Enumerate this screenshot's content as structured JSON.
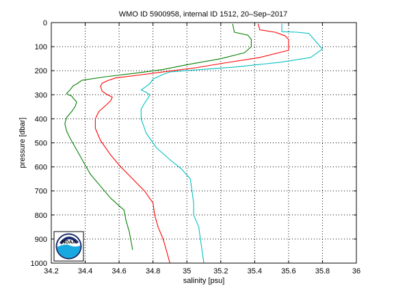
{
  "chart_data": {
    "type": "line",
    "title": "WMO ID 5900958, internal ID 1512, 20–Sep–2017",
    "xlabel": "salinity [psu]",
    "ylabel": "pressure [dbar]",
    "xlim": [
      34.2,
      36
    ],
    "ylim": [
      0,
      1000
    ],
    "y_reversed": true,
    "grid": true,
    "x_ticks": [
      34.2,
      34.4,
      34.6,
      34.8,
      35,
      35.2,
      35.4,
      35.6,
      35.8,
      36
    ],
    "x_tick_labels": [
      "34.2",
      "34.4",
      "34.6",
      "34.8",
      "35",
      "35.2",
      "35.4",
      "35.6",
      "35.8",
      "36"
    ],
    "y_ticks": [
      0,
      100,
      200,
      300,
      400,
      500,
      600,
      700,
      800,
      900,
      1000
    ],
    "y_tick_labels": [
      "0",
      "100",
      "200",
      "300",
      "400",
      "500",
      "600",
      "700",
      "800",
      "900",
      "1000"
    ],
    "logo": "noaa-logo",
    "series": [
      {
        "color": "#007f00",
        "points": [
          [
            35.27,
            5
          ],
          [
            35.28,
            40
          ],
          [
            35.36,
            52
          ],
          [
            35.38,
            70
          ],
          [
            35.38,
            100
          ],
          [
            35.34,
            125
          ],
          [
            35.2,
            150
          ],
          [
            35.0,
            175
          ],
          [
            34.86,
            195
          ],
          [
            34.7,
            210
          ],
          [
            34.52,
            225
          ],
          [
            34.38,
            240
          ],
          [
            34.35,
            255
          ],
          [
            34.33,
            262
          ],
          [
            34.31,
            280
          ],
          [
            34.29,
            295
          ],
          [
            34.3,
            300
          ],
          [
            34.32,
            305
          ],
          [
            34.33,
            315
          ],
          [
            34.35,
            330
          ],
          [
            34.34,
            350
          ],
          [
            34.32,
            370
          ],
          [
            34.29,
            395
          ],
          [
            34.28,
            420
          ],
          [
            34.29,
            450
          ],
          [
            34.31,
            480
          ],
          [
            34.35,
            530
          ],
          [
            34.39,
            580
          ],
          [
            34.43,
            630
          ],
          [
            34.49,
            680
          ],
          [
            34.55,
            730
          ],
          [
            34.63,
            780
          ],
          [
            34.64,
            820
          ],
          [
            34.66,
            870
          ],
          [
            34.68,
            945
          ]
        ]
      },
      {
        "color": "#ff0000",
        "points": [
          [
            35.42,
            5
          ],
          [
            35.43,
            30
          ],
          [
            35.52,
            40
          ],
          [
            35.58,
            55
          ],
          [
            35.6,
            70
          ],
          [
            35.6,
            115
          ],
          [
            35.43,
            145
          ],
          [
            35.22,
            168
          ],
          [
            35.05,
            188
          ],
          [
            34.88,
            203
          ],
          [
            34.72,
            218
          ],
          [
            34.58,
            230
          ],
          [
            34.53,
            242
          ],
          [
            34.5,
            252
          ],
          [
            34.49,
            265
          ],
          [
            34.5,
            285
          ],
          [
            34.53,
            300
          ],
          [
            34.56,
            310
          ],
          [
            34.55,
            325
          ],
          [
            34.52,
            345
          ],
          [
            34.48,
            370
          ],
          [
            34.46,
            400
          ],
          [
            34.46,
            440
          ],
          [
            34.49,
            490
          ],
          [
            34.55,
            550
          ],
          [
            34.61,
            600
          ],
          [
            34.68,
            650
          ],
          [
            34.75,
            700
          ],
          [
            34.8,
            750
          ],
          [
            34.81,
            800
          ],
          [
            34.83,
            850
          ],
          [
            34.86,
            900
          ],
          [
            34.88,
            950
          ],
          [
            34.9,
            1000
          ]
        ]
      },
      {
        "color": "#00bfbf",
        "points": [
          [
            35.56,
            5
          ],
          [
            35.56,
            38
          ],
          [
            35.65,
            40
          ],
          [
            35.72,
            45
          ],
          [
            35.75,
            70
          ],
          [
            35.8,
            110
          ],
          [
            35.73,
            145
          ],
          [
            35.55,
            165
          ],
          [
            35.28,
            185
          ],
          [
            35.05,
            197
          ],
          [
            34.9,
            205
          ],
          [
            34.86,
            215
          ],
          [
            34.83,
            225
          ],
          [
            34.8,
            235
          ],
          [
            34.78,
            255
          ],
          [
            34.75,
            270
          ],
          [
            34.73,
            280
          ],
          [
            34.76,
            290
          ],
          [
            34.78,
            300
          ],
          [
            34.77,
            315
          ],
          [
            34.75,
            335
          ],
          [
            34.73,
            360
          ],
          [
            34.73,
            400
          ],
          [
            34.76,
            460
          ],
          [
            34.82,
            520
          ],
          [
            34.9,
            570
          ],
          [
            34.97,
            610
          ],
          [
            35.02,
            650
          ],
          [
            35.03,
            700
          ],
          [
            35.04,
            750
          ],
          [
            35.04,
            800
          ],
          [
            35.07,
            850
          ],
          [
            35.08,
            900
          ],
          [
            35.09,
            950
          ],
          [
            35.1,
            1000
          ]
        ]
      }
    ]
  }
}
